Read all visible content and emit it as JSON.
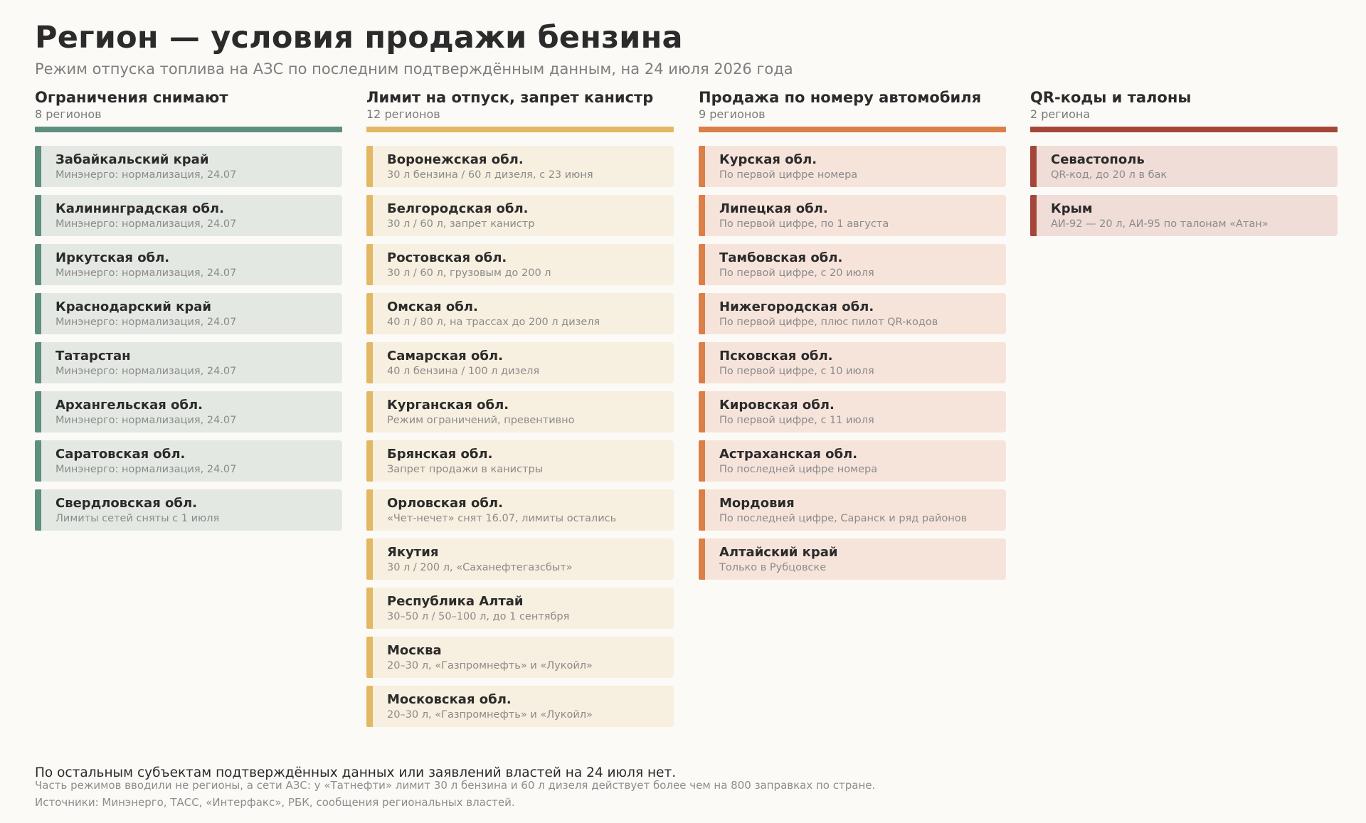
{
  "title": "Регион — условия продажи бензина",
  "subtitle": "Режим отпуска топлива на АЗС по последним подтверждённым данным, на 24 июля 2026 года",
  "columns": [
    {
      "heading": "Ограничения снимают",
      "count": "8 регионов",
      "accent": "#5f8f7f",
      "card_bg": "#e3e8e3",
      "items": [
        {
          "name": "Забайкальский край",
          "note": "Минэнерго: нормализация, 24.07"
        },
        {
          "name": "Калининградская обл.",
          "note": "Минэнерго: нормализация, 24.07"
        },
        {
          "name": "Иркутская обл.",
          "note": "Минэнерго: нормализация, 24.07"
        },
        {
          "name": "Краснодарский край",
          "note": "Минэнерго: нормализация, 24.07"
        },
        {
          "name": "Татарстан",
          "note": "Минэнерго: нормализация, 24.07"
        },
        {
          "name": "Архангельская обл.",
          "note": "Минэнерго: нормализация, 24.07"
        },
        {
          "name": "Саратовская обл.",
          "note": "Минэнерго: нормализация, 24.07"
        },
        {
          "name": "Свердловская обл.",
          "note": "Лимиты сетей сняты с 1 июля"
        }
      ]
    },
    {
      "heading": "Лимит на отпуск, запрет канистр",
      "count": "12 регионов",
      "accent": "#e2b864",
      "card_bg": "#f7efdf",
      "items": [
        {
          "name": "Воронежская обл.",
          "note": "30 л бензина / 60 л дизеля, с 23 июня"
        },
        {
          "name": "Белгородская обл.",
          "note": "30 л / 60 л, запрет канистр"
        },
        {
          "name": "Ростовская обл.",
          "note": "30 л / 60 л, грузовым до 200 л"
        },
        {
          "name": "Омская обл.",
          "note": "40 л / 80 л, на трассах до 200 л дизеля"
        },
        {
          "name": "Самарская обл.",
          "note": "40 л бензина / 100 л дизеля"
        },
        {
          "name": "Курганская обл.",
          "note": "Режим ограничений, превентивно"
        },
        {
          "name": "Брянская обл.",
          "note": "Запрет продажи в канистры"
        },
        {
          "name": "Орловская обл.",
          "note": "«Чет-нечет» снят 16.07, лимиты остались"
        },
        {
          "name": "Якутия",
          "note": "30 л / 200 л, «Саханефтегазсбыт»"
        },
        {
          "name": "Республика Алтай",
          "note": "30–50 л / 50–100 л, до 1 сентября"
        },
        {
          "name": "Москва",
          "note": "20–30 л, «Газпромнефть» и «Лукойл»"
        },
        {
          "name": "Московская обл.",
          "note": "20–30 л, «Газпромнефть» и «Лукойл»"
        }
      ]
    },
    {
      "heading": "Продажа по номеру автомобиля",
      "count": "9 регионов",
      "accent": "#d97f47",
      "card_bg": "#f6e4db",
      "items": [
        {
          "name": "Курская обл.",
          "note": "По первой цифре номера"
        },
        {
          "name": "Липецкая обл.",
          "note": "По первой цифре, по 1 августа"
        },
        {
          "name": "Тамбовская обл.",
          "note": "По первой цифре, с 20 июля"
        },
        {
          "name": "Нижегородская обл.",
          "note": "По первой цифре, плюс пилот QR-кодов"
        },
        {
          "name": "Псковская обл.",
          "note": "По первой цифре, с 10 июля"
        },
        {
          "name": "Кировская обл.",
          "note": "По первой цифре, с 11 июля"
        },
        {
          "name": "Астраханская обл.",
          "note": "По последней цифре номера"
        },
        {
          "name": "Мордовия",
          "note": "По последней цифре, Саранск и ряд районов"
        },
        {
          "name": "Алтайский край",
          "note": "Только в Рубцовске"
        }
      ]
    },
    {
      "heading": "QR-коды и талоны",
      "count": "2 региона",
      "accent": "#a5463a",
      "card_bg": "#f0ddd7",
      "items": [
        {
          "name": "Севастополь",
          "note": "QR-код, до 20 л в бак"
        },
        {
          "name": "Крым",
          "note": "АИ-92 — 20 л, АИ-95 по талонам «Атан»"
        }
      ]
    }
  ],
  "footer": {
    "main": "По остальным субъектам подтверждённых данных или заявлений властей на 24 июля нет.",
    "note": "Часть режимов вводили не регионы, а сети АЗС: у «Татнефти» лимит 30 л бензина и 60 л дизеля действует более чем на 800 заправках по стране.",
    "sources": "Источники: Минэнерго, ТАСС, «Интерфакс», РБК, сообщения региональных властей."
  }
}
